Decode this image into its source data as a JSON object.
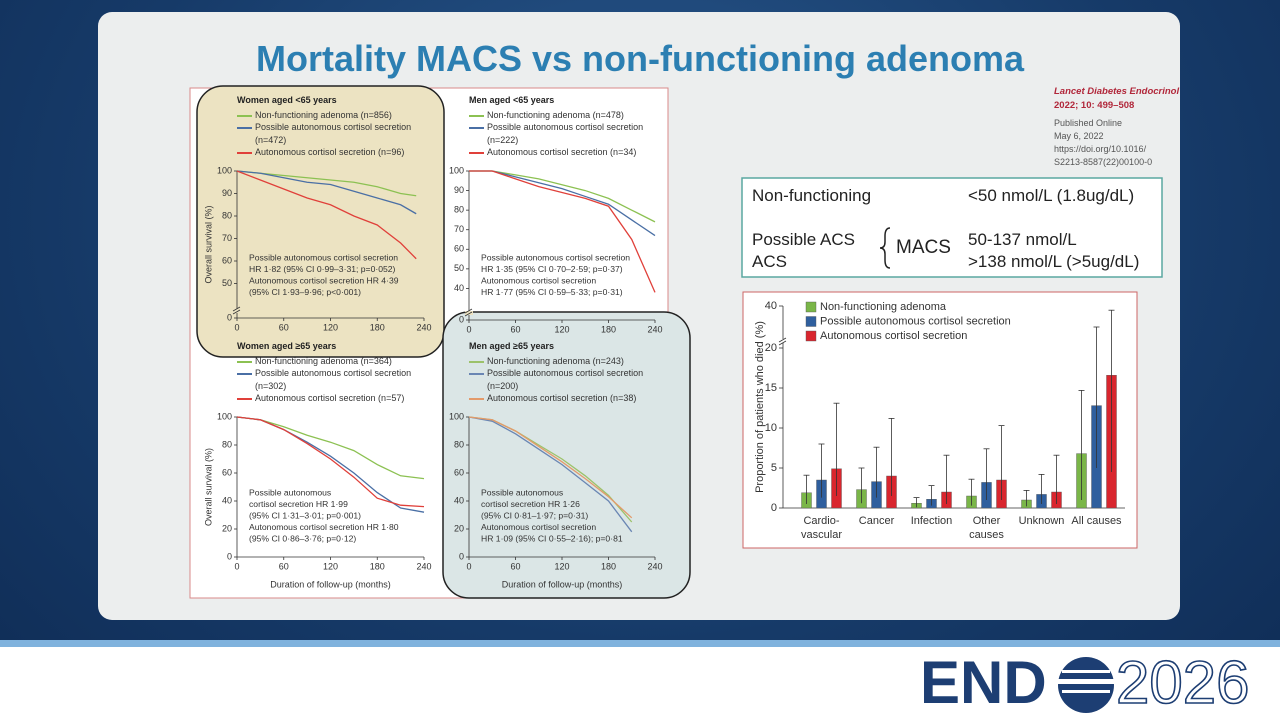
{
  "slide": {
    "title": "Mortality MACS vs non-functioning adenoma",
    "citation": {
      "journal": "Lancet Diabetes Endocrinol",
      "reference": "2022; 10: 499–508",
      "lines": [
        "Published Online",
        "May 6, 2022",
        "https://doi.org/10.1016/",
        "S2213-8587(22)00100-0"
      ]
    },
    "table": {
      "row": {
        "label": "Non-functioning",
        "value": "<50 nmol/L (1.8ug/dL)"
      },
      "group": {
        "labels": [
          "Possible ACS",
          "ACS"
        ],
        "name": "MACS",
        "values": [
          "50-137 nmol/L",
          ">138 nmol/L (>5ug/dL)"
        ]
      }
    },
    "logo": {
      "left": "END",
      "right": "2026"
    }
  },
  "chart_data": [
    {
      "type": "line",
      "title": "Women aged <65 years",
      "ylabel": "Overall survival (%)",
      "x": [
        0,
        30,
        60,
        90,
        120,
        150,
        180,
        210,
        230
      ],
      "series": [
        {
          "name": "Non-functioning adenoma (n=856)",
          "color": "#8cc152",
          "values": [
            100,
            99,
            98,
            97,
            96,
            95,
            93,
            90,
            89
          ]
        },
        {
          "name": "Possible autonomous cortisol secretion (n=472)",
          "color": "#4a6fa5",
          "values": [
            100,
            99,
            97,
            95,
            94,
            91,
            88,
            85,
            81
          ]
        },
        {
          "name": "Autonomous cortisol secretion (n=96)",
          "color": "#e0403a",
          "values": [
            100,
            96,
            92,
            88,
            85,
            80,
            76,
            68,
            61
          ]
        }
      ],
      "xlim": [
        0,
        240
      ],
      "xticks": [
        0,
        60,
        120,
        180,
        240
      ],
      "ylim": [
        40,
        100
      ],
      "yticks": [
        50,
        60,
        70,
        80,
        90,
        100
      ],
      "y_break_tick": 0,
      "annotations": [
        "Possible autonomous cortisol secretion",
        "HR 1·82 (95% CI 0·99–3·31; p=0·052)",
        "Autonomous cortisol secretion HR 4·39",
        "(95% CI 1·93–9·96; p<0·001)"
      ]
    },
    {
      "type": "line",
      "title": "Men aged <65 years",
      "x": [
        0,
        30,
        60,
        90,
        120,
        150,
        180,
        210,
        240
      ],
      "series": [
        {
          "name": "Non-functioning adenoma (n=478)",
          "color": "#8cc152",
          "values": [
            100,
            100,
            98,
            96,
            93,
            90,
            86,
            80,
            74
          ]
        },
        {
          "name": "Possible autonomous cortisol secretion (n=222)",
          "color": "#4a6fa5",
          "values": [
            100,
            100,
            97,
            94,
            91,
            87,
            83,
            75,
            67
          ]
        },
        {
          "name": "Autonomous cortisol secretion (n=34)",
          "color": "#e0403a",
          "values": [
            100,
            100,
            96,
            92,
            89,
            86,
            82,
            65,
            38
          ]
        }
      ],
      "xlim": [
        0,
        240
      ],
      "xticks": [
        0,
        60,
        120,
        180,
        240
      ],
      "ylim": [
        30,
        100
      ],
      "yticks": [
        40,
        50,
        60,
        70,
        80,
        90,
        100
      ],
      "y_break_tick": 0,
      "annotations": [
        "Possible autonomous cortisol secretion",
        "HR 1·35 (95% CI 0·70–2·59; p=0·37)",
        "Autonomous cortisol secretion",
        "HR 1·77 (95% CI 0·59–5·33; p=0·31)"
      ]
    },
    {
      "type": "line",
      "title": "Women aged ≥65 years",
      "ylabel": "Overall survival (%)",
      "xlabel": "Duration of follow-up (months)",
      "x": [
        0,
        30,
        60,
        90,
        120,
        150,
        180,
        210,
        240
      ],
      "series": [
        {
          "name": "Non-functioning adenoma (n=364)",
          "color": "#8cc152",
          "values": [
            100,
            98,
            93,
            87,
            82,
            76,
            66,
            58,
            56
          ]
        },
        {
          "name": "Possible autonomous cortisol secretion (n=302)",
          "color": "#4a6fa5",
          "values": [
            100,
            98,
            91,
            82,
            72,
            60,
            46,
            35,
            32
          ]
        },
        {
          "name": "Autonomous cortisol secretion (n=57)",
          "color": "#e0403a",
          "values": [
            100,
            98,
            91,
            81,
            70,
            57,
            42,
            37,
            36
          ]
        }
      ],
      "xlim": [
        0,
        240
      ],
      "xticks": [
        0,
        60,
        120,
        180,
        240
      ],
      "ylim": [
        0,
        100
      ],
      "yticks": [
        0,
        20,
        40,
        60,
        80,
        100
      ],
      "annotations": [
        "Possible autonomous",
        "cortisol secretion HR 1·99",
        "(95% CI 1·31–3·01; p=0·001)",
        "Autonomous cortisol secretion HR 1·80",
        "(95% CI 0·86–3·76; p=0·12)"
      ]
    },
    {
      "type": "line",
      "title": "Men aged ≥65 years",
      "xlabel": "Duration of follow-up (months)",
      "x": [
        0,
        30,
        60,
        90,
        120,
        150,
        180,
        210
      ],
      "series": [
        {
          "name": "Non-functioning adenoma (n=243)",
          "color": "#9cc26a",
          "values": [
            100,
            98,
            90,
            80,
            70,
            58,
            44,
            25
          ]
        },
        {
          "name": "Possible autonomous cortisol secretion (n=200)",
          "color": "#6a86b3",
          "values": [
            100,
            97,
            88,
            77,
            66,
            53,
            40,
            18
          ]
        },
        {
          "name": "Autonomous cortisol secretion (n=38)",
          "color": "#e39a6a",
          "values": [
            100,
            98,
            90,
            79,
            68,
            56,
            43,
            28
          ]
        }
      ],
      "xlim": [
        0,
        240
      ],
      "xticks": [
        0,
        60,
        120,
        180,
        240
      ],
      "ylim": [
        0,
        100
      ],
      "yticks": [
        0,
        20,
        40,
        60,
        80,
        100
      ],
      "annotations": [
        "Possible autonomous",
        "cortisol secretion HR 1·26",
        "(95% CI 0·81–1·97; p=0·31)",
        "Autonomous cortisol secretion",
        "HR 1·09 (95% CI 0·55–2·16); p=0·81"
      ]
    },
    {
      "type": "bar",
      "ylabel": "Proportion of patients who died (%)",
      "categories": [
        "Cardio-\nvascular",
        "Cancer",
        "Infection",
        "Other\ncauses",
        "Unknown",
        "All causes"
      ],
      "series": [
        {
          "name": "Non-functioning adenoma",
          "color": "#7ab648",
          "values": [
            1.9,
            2.3,
            0.6,
            1.5,
            1.0,
            6.8
          ],
          "error_low": [
            0.5,
            0.6,
            0.1,
            0.3,
            0.2,
            1.0
          ],
          "error_high": [
            4.1,
            5.0,
            1.3,
            3.6,
            2.2,
            14.7
          ]
        },
        {
          "name": "Possible autonomous cortisol secretion",
          "color": "#2f5f9e",
          "values": [
            3.5,
            3.3,
            1.1,
            3.2,
            1.7,
            12.8
          ],
          "error_low": [
            1.3,
            1.3,
            0.3,
            1.0,
            0.5,
            5.0
          ],
          "error_high": [
            8.0,
            7.6,
            2.8,
            7.4,
            4.2,
            30
          ]
        },
        {
          "name": "Autonomous cortisol secretion",
          "color": "#d9262e",
          "values": [
            4.9,
            4.0,
            2.0,
            3.5,
            2.0,
            16.6
          ],
          "error_low": [
            1.5,
            1.5,
            0.5,
            1.0,
            0.5,
            4.5
          ],
          "error_high": [
            13.1,
            11.2,
            6.6,
            10.3,
            6.6,
            38
          ]
        }
      ],
      "ylim": [
        0,
        40
      ],
      "yticks": [
        0,
        5,
        10,
        15,
        20,
        40
      ],
      "axis_break_at": 20
    }
  ]
}
